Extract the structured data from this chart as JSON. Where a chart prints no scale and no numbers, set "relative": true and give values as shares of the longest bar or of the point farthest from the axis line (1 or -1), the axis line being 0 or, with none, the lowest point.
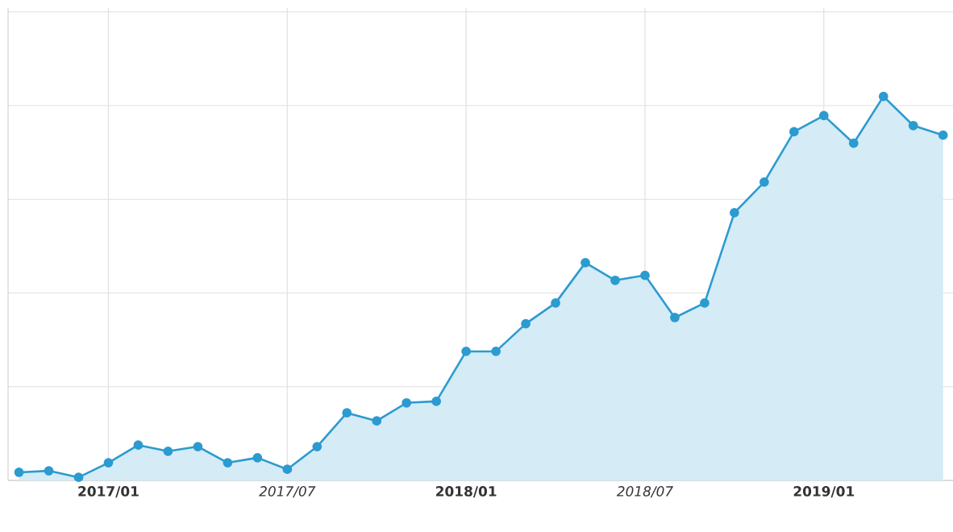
{
  "chart_data": {
    "type": "area",
    "relative": true,
    "marker": "circle",
    "grid": true,
    "x": [
      "2016-10",
      "2016-11",
      "2016-12",
      "2017-01",
      "2017-02",
      "2017-03",
      "2017-04",
      "2017-05",
      "2017-06",
      "2017-07",
      "2017-08",
      "2017-09",
      "2017-10",
      "2017-11",
      "2017-12",
      "2018-01",
      "2018-02",
      "2018-03",
      "2018-04",
      "2018-05",
      "2018-06",
      "2018-07",
      "2018-08",
      "2018-09",
      "2018-10",
      "2018-11",
      "2018-12",
      "2019-01",
      "2019-02",
      "2019-03",
      "2019-04",
      "2019-05"
    ],
    "series": [
      {
        "color": "#2b9bd0",
        "values": [
          0.021,
          0.025,
          0.008,
          0.046,
          0.092,
          0.076,
          0.088,
          0.046,
          0.059,
          0.029,
          0.088,
          0.176,
          0.155,
          0.202,
          0.206,
          0.336,
          0.336,
          0.408,
          0.462,
          0.567,
          0.521,
          0.534,
          0.424,
          0.462,
          0.697,
          0.777,
          0.908,
          0.95,
          0.878,
          1,
          0.924,
          0.899
        ]
      }
    ],
    "xlim": [
      "2016-09-20",
      "2019-05-11"
    ],
    "xticks": [
      {
        "value": "2017-01",
        "label": "2017/01"
      },
      {
        "value": "2017-07",
        "label": "2017/07"
      },
      {
        "value": "2018-01",
        "label": "2018/01"
      },
      {
        "value": "2018-07",
        "label": "2018/07"
      },
      {
        "value": "2019-01",
        "label": "2019/01"
      }
    ]
  }
}
